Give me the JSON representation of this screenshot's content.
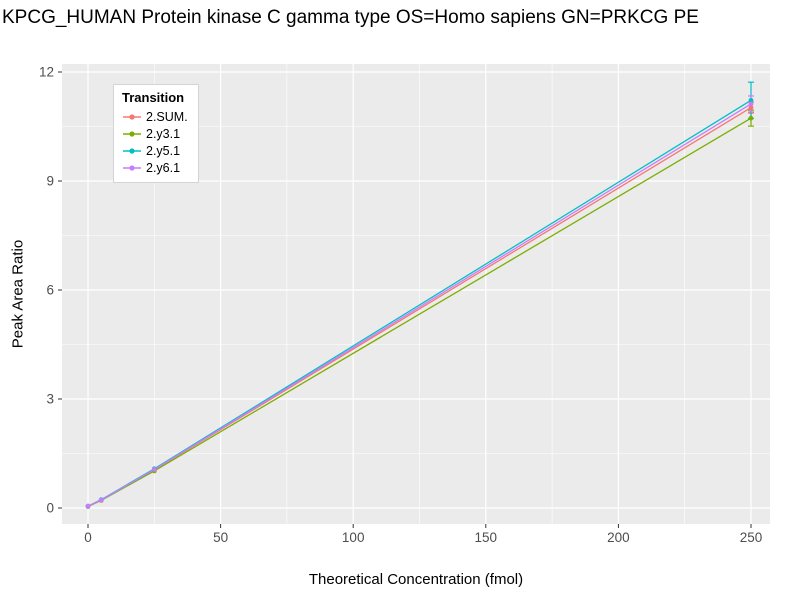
{
  "chart_data": {
    "type": "line",
    "title": "KPCG_HUMAN Protein kinase C gamma type OS=Homo sapiens GN=PRKCG PE",
    "xlabel": "Theoretical Concentration (fmol)",
    "ylabel": "Peak Area Ratio",
    "legend_title": "Transition",
    "legend_position": "top-left-inside",
    "grid": true,
    "x": [
      0,
      5,
      25,
      250
    ],
    "x_ticks": [
      0,
      50,
      100,
      150,
      200,
      250
    ],
    "y_ticks": [
      0,
      3,
      6,
      9,
      12
    ],
    "x_minor": [
      25,
      75,
      125,
      175,
      225
    ],
    "y_minor": [
      1.5,
      4.5,
      7.5,
      10.5
    ],
    "xlim": [
      -10,
      257
    ],
    "ylim": [
      -0.5,
      12.2
    ],
    "series": [
      {
        "name": "2.SUM.",
        "color": "#F8766D",
        "values": [
          0.05,
          0.22,
          1.05,
          11.02
        ],
        "yerr_last": 0.15
      },
      {
        "name": "2.y3.1",
        "color": "#7CAE00",
        "values": [
          0.04,
          0.21,
          1.02,
          10.73
        ],
        "yerr_last": 0.22
      },
      {
        "name": "2.y5.1",
        "color": "#00BFC4",
        "values": [
          0.05,
          0.23,
          1.08,
          11.22
        ],
        "yerr_last": 0.5
      },
      {
        "name": "2.y6.1",
        "color": "#C77CFF",
        "values": [
          0.05,
          0.22,
          1.06,
          11.12
        ],
        "yerr_last": 0.22
      }
    ],
    "style": {
      "panel_background": "#EBEBEB",
      "grid_color": "#FFFFFF",
      "tick_label_color": "#4D4D4D",
      "tick_mark_color": "#333333"
    }
  }
}
